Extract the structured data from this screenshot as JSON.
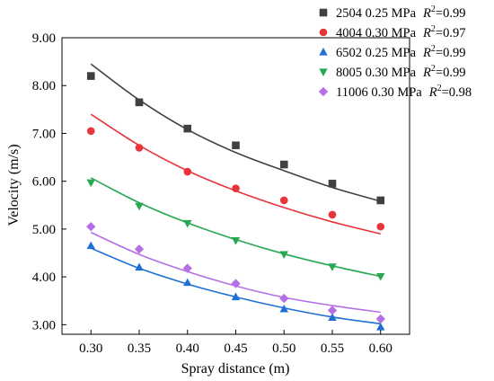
{
  "chart_data": {
    "type": "scatter",
    "title": "",
    "xlabel": "Spray distance (m)",
    "ylabel": "Velocity (m/s)",
    "xlim": [
      0.27,
      0.63
    ],
    "ylim": [
      2.8,
      9.0
    ],
    "x_ticks": [
      "0.30",
      "0.35",
      "0.40",
      "0.45",
      "0.50",
      "0.55",
      "0.60"
    ],
    "y_ticks": [
      "3.00",
      "4.00",
      "5.00",
      "6.00",
      "7.00",
      "8.00",
      "9.00"
    ],
    "legend_position": "top-right",
    "x": [
      0.3,
      0.35,
      0.4,
      0.45,
      0.5,
      0.55,
      0.6
    ],
    "series": [
      {
        "name": "2504 0.25 MPa",
        "r2": "=0.99",
        "marker": "square",
        "marker_color": "#404040",
        "line_color": "#404040",
        "values": [
          8.2,
          7.65,
          7.1,
          6.75,
          6.35,
          5.95,
          5.6
        ],
        "fit": [
          8.45,
          7.7,
          7.08,
          6.6,
          6.22,
          5.87,
          5.58
        ]
      },
      {
        "name": "4004 0.30 MPa",
        "r2": "=0.97",
        "marker": "circle",
        "marker_color": "#e8343a",
        "line_color": "#e8343a",
        "values": [
          7.05,
          6.7,
          6.2,
          5.85,
          5.6,
          5.3,
          5.05
        ],
        "fit": [
          7.4,
          6.75,
          6.22,
          5.8,
          5.45,
          5.15,
          4.9
        ]
      },
      {
        "name": "6502 0.25 MPa",
        "r2": "=0.99",
        "marker": "triangle-up",
        "marker_color": "#1f6fd6",
        "line_color": "#1f6fd6",
        "values": [
          4.65,
          4.2,
          3.88,
          3.58,
          3.33,
          3.15,
          2.95
        ],
        "fit": [
          4.6,
          4.18,
          3.85,
          3.58,
          3.35,
          3.16,
          3.02
        ]
      },
      {
        "name": "8005 0.30 MPa",
        "r2": "=0.99",
        "marker": "triangle-down",
        "marker_color": "#27a851",
        "line_color": "#27a851",
        "values": [
          5.97,
          5.48,
          5.12,
          4.76,
          4.47,
          4.21,
          4.01
        ],
        "fit": [
          6.07,
          5.55,
          5.13,
          4.78,
          4.48,
          4.23,
          4.01
        ]
      },
      {
        "name": "11006 0.30 MPa",
        "r2": "=0.98",
        "marker": "diamond",
        "marker_color": "#b56fe6",
        "line_color": "#b56fe6",
        "values": [
          5.05,
          4.58,
          4.18,
          3.86,
          3.55,
          3.3,
          3.12
        ],
        "fit": [
          4.93,
          4.47,
          4.11,
          3.81,
          3.57,
          3.4,
          3.26
        ]
      }
    ]
  }
}
